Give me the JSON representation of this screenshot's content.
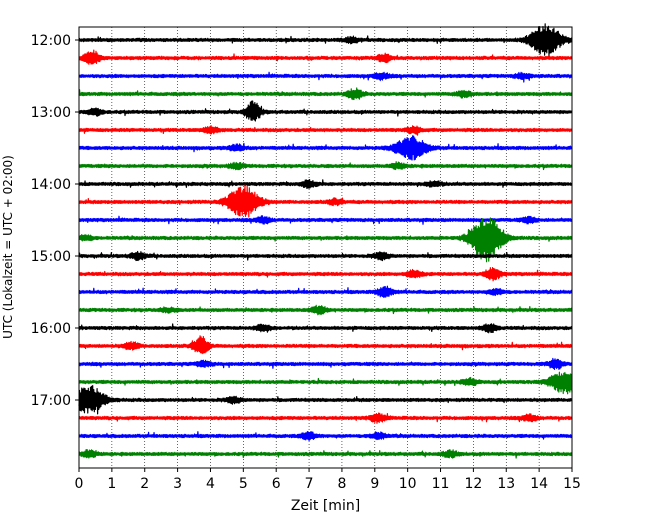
{
  "chart_data": {
    "type": "line",
    "title": "",
    "xlabel": "Zeit  [min]",
    "ylabel": "UTC (Lokalzeit = UTC + 02:00)",
    "xlim": [
      0,
      15
    ],
    "x_ticks": [
      "0",
      "1",
      "2",
      "3",
      "4",
      "5",
      "6",
      "7",
      "8",
      "9",
      "10",
      "11",
      "12",
      "13",
      "14",
      "15"
    ],
    "y_ticks": [
      "12:00",
      "13:00",
      "14:00",
      "15:00",
      "16:00",
      "17:00"
    ],
    "grid": "vertical-dotted",
    "trace_interval_min": 15,
    "color_cycle": [
      "#000000",
      "#ff0000",
      "#0000ff",
      "#008000"
    ],
    "traces": [
      {
        "start": "12:00",
        "events": [
          {
            "t": 8.3,
            "a": 0.5
          },
          {
            "t": 14.2,
            "a": 3.0
          }
        ]
      },
      {
        "start": "12:15",
        "events": [
          {
            "t": 0.4,
            "a": 1.5
          },
          {
            "t": 9.3,
            "a": 0.7
          }
        ]
      },
      {
        "start": "12:30",
        "events": [
          {
            "t": 9.2,
            "a": 0.6
          },
          {
            "t": 13.5,
            "a": 0.5
          }
        ]
      },
      {
        "start": "12:45",
        "events": [
          {
            "t": 8.4,
            "a": 1.0
          },
          {
            "t": 11.7,
            "a": 0.6
          }
        ]
      },
      {
        "start": "13:00",
        "events": [
          {
            "t": 5.3,
            "a": 2.0
          },
          {
            "t": 0.5,
            "a": 0.6
          }
        ]
      },
      {
        "start": "13:15",
        "events": [
          {
            "t": 4.0,
            "a": 0.6
          },
          {
            "t": 10.2,
            "a": 0.6
          }
        ]
      },
      {
        "start": "13:30",
        "events": [
          {
            "t": 10.1,
            "a": 2.2
          },
          {
            "t": 4.8,
            "a": 0.6
          }
        ]
      },
      {
        "start": "13:45",
        "events": [
          {
            "t": 4.8,
            "a": 0.5
          },
          {
            "t": 9.7,
            "a": 0.5
          }
        ]
      },
      {
        "start": "14:00",
        "events": [
          {
            "t": 7.0,
            "a": 0.7
          },
          {
            "t": 10.8,
            "a": 0.5
          }
        ]
      },
      {
        "start": "14:15",
        "events": [
          {
            "t": 5.0,
            "a": 3.2
          },
          {
            "t": 7.8,
            "a": 0.5
          }
        ]
      },
      {
        "start": "14:30",
        "events": [
          {
            "t": 5.6,
            "a": 0.6
          },
          {
            "t": 13.7,
            "a": 0.5
          }
        ]
      },
      {
        "start": "14:45",
        "events": [
          {
            "t": 12.4,
            "a": 4.5
          },
          {
            "t": 0.2,
            "a": 0.5
          }
        ]
      },
      {
        "start": "15:00",
        "events": [
          {
            "t": 1.8,
            "a": 0.7
          },
          {
            "t": 9.2,
            "a": 0.7
          }
        ]
      },
      {
        "start": "15:15",
        "events": [
          {
            "t": 12.6,
            "a": 1.2
          },
          {
            "t": 10.2,
            "a": 0.7
          }
        ]
      },
      {
        "start": "15:30",
        "events": [
          {
            "t": 9.3,
            "a": 1.0
          },
          {
            "t": 12.7,
            "a": 0.5
          }
        ]
      },
      {
        "start": "15:45",
        "events": [
          {
            "t": 7.3,
            "a": 0.7
          },
          {
            "t": 2.7,
            "a": 0.4
          }
        ]
      },
      {
        "start": "16:00",
        "events": [
          {
            "t": 5.6,
            "a": 0.6
          },
          {
            "t": 12.5,
            "a": 0.7
          }
        ]
      },
      {
        "start": "16:15",
        "events": [
          {
            "t": 3.7,
            "a": 1.8
          },
          {
            "t": 1.6,
            "a": 0.7
          }
        ]
      },
      {
        "start": "16:30",
        "events": [
          {
            "t": 14.5,
            "a": 0.9
          },
          {
            "t": 3.8,
            "a": 0.5
          }
        ]
      },
      {
        "start": "16:45",
        "events": [
          {
            "t": 14.8,
            "a": 2.2
          },
          {
            "t": 11.9,
            "a": 0.6
          }
        ]
      },
      {
        "start": "17:00",
        "events": [
          {
            "t": 0.3,
            "a": 2.8
          },
          {
            "t": 4.7,
            "a": 0.6
          }
        ]
      },
      {
        "start": "17:15",
        "events": [
          {
            "t": 9.1,
            "a": 0.8
          },
          {
            "t": 13.7,
            "a": 0.6
          }
        ]
      },
      {
        "start": "17:30",
        "events": [
          {
            "t": 7.0,
            "a": 0.7
          },
          {
            "t": 9.1,
            "a": 0.6
          }
        ]
      },
      {
        "start": "17:45",
        "events": [
          {
            "t": 0.3,
            "a": 0.7
          },
          {
            "t": 11.3,
            "a": 0.6
          }
        ]
      }
    ]
  }
}
